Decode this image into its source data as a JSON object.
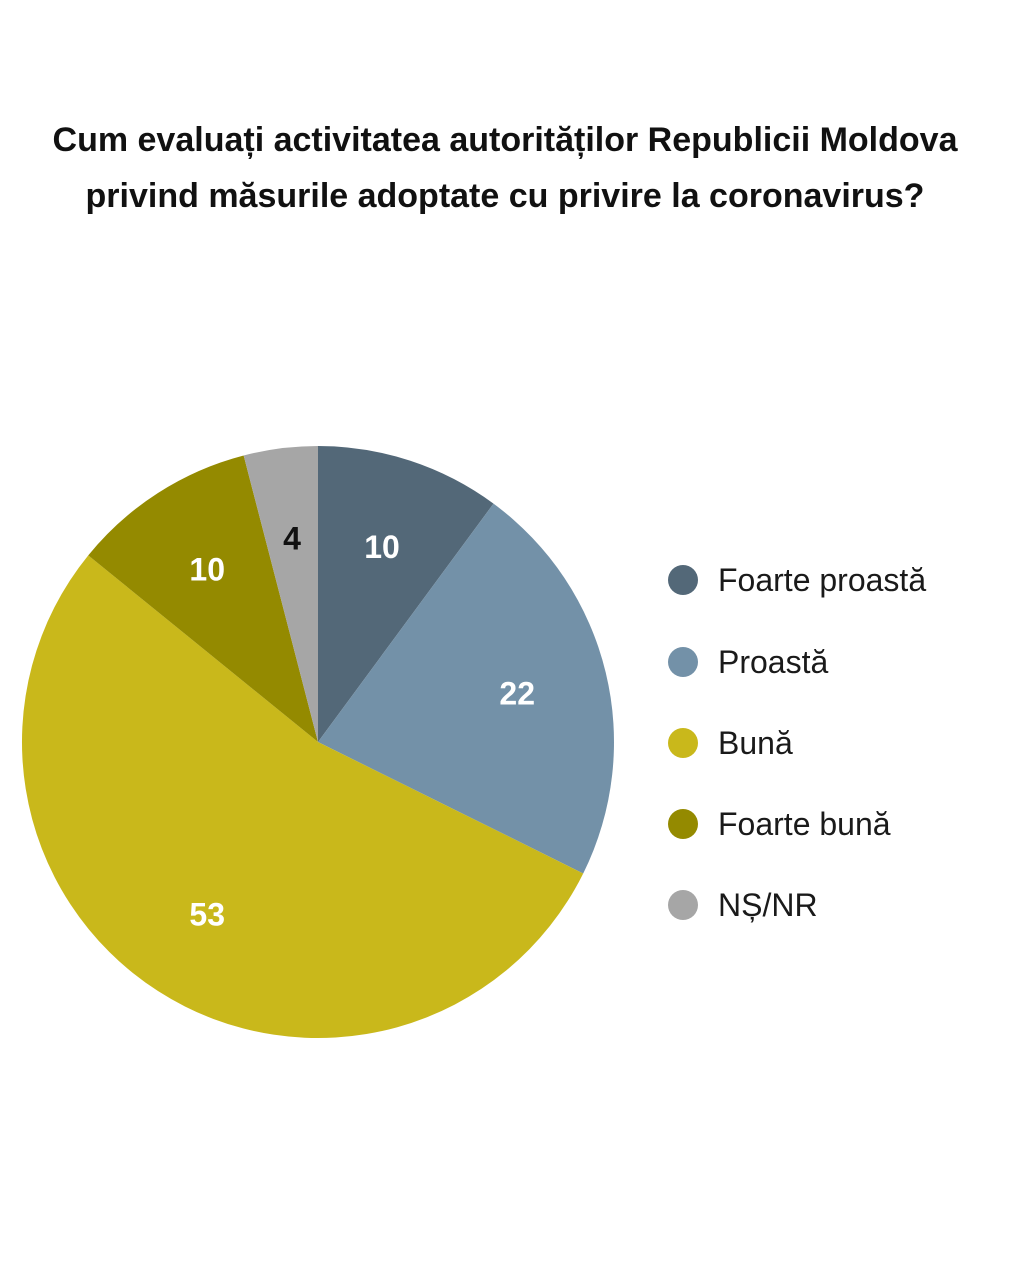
{
  "title": {
    "line1": "Cum evaluați activitatea autorităților Republicii Moldova",
    "line2": "privind măsurile adoptate cu privire la coronavirus?"
  },
  "chart_data": {
    "type": "pie",
    "title": "Cum evaluați activitatea autorităților Republicii Moldova privind măsurile adoptate cu privire la coronavirus?",
    "start": "top",
    "direction": "clockwise",
    "legend_position": "right",
    "slices": [
      {
        "label": "Foarte proastă",
        "value": 10,
        "color": "#536878",
        "label_color": "#ffffff"
      },
      {
        "label": "Proastă",
        "value": 22,
        "color": "#7391a8",
        "label_color": "#ffffff"
      },
      {
        "label": "Bună",
        "value": 53,
        "color": "#c9b81b",
        "label_color": "#ffffff"
      },
      {
        "label": "Foarte bună",
        "value": 10,
        "color": "#948a00",
        "label_color": "#ffffff"
      },
      {
        "label": "NȘ/NR",
        "value": 4,
        "color": "#a6a6a6",
        "label_color": "#111111"
      }
    ]
  },
  "legend": {
    "items": [
      {
        "label": "Foarte proastă",
        "color": "#536878"
      },
      {
        "label": "Proastă",
        "color": "#7391a8"
      },
      {
        "label": "Bună",
        "color": "#c9b81b"
      },
      {
        "label": "Foarte bună",
        "color": "#948a00"
      },
      {
        "label": "NȘ/NR",
        "color": "#a6a6a6"
      }
    ]
  }
}
